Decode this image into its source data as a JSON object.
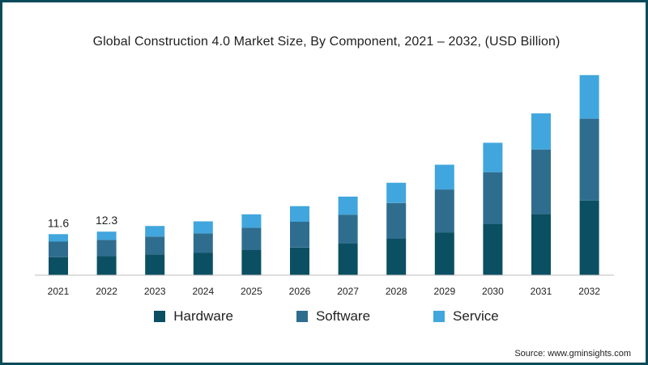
{
  "chart_data": {
    "type": "bar",
    "stacked": true,
    "title": "Global Construction 4.0 Market Size, By Component, 2021 – 2032, (USD Billion)",
    "xlabel": "",
    "ylabel": "",
    "categories": [
      "2021",
      "2022",
      "2023",
      "2024",
      "2025",
      "2026",
      "2027",
      "2028",
      "2029",
      "2030",
      "2031",
      "2032"
    ],
    "series": [
      {
        "name": "Hardware",
        "color": "#0b4f63",
        "values": [
          5.1,
          5.4,
          5.9,
          6.3,
          7.1,
          7.8,
          9.0,
          10.3,
          12.1,
          14.4,
          17.3,
          21.1
        ]
      },
      {
        "name": "Software",
        "color": "#2f6d8f",
        "values": [
          4.4,
          4.6,
          5.0,
          5.5,
          6.3,
          7.3,
          8.1,
          10.1,
          12.1,
          14.7,
          18.2,
          23.1
        ]
      },
      {
        "name": "Service",
        "color": "#41a6dd",
        "values": [
          2.1,
          2.3,
          3.0,
          3.4,
          3.8,
          4.4,
          5.1,
          5.7,
          7.0,
          8.3,
          10.2,
          12.3
        ]
      }
    ],
    "data_labels": [
      {
        "category": "2021",
        "text": "11.6"
      },
      {
        "category": "2022",
        "text": "12.3"
      }
    ],
    "ylim": [
      0,
      60
    ],
    "grid": false,
    "legend_position": "bottom"
  },
  "source": "Source: www.gminsights.com"
}
